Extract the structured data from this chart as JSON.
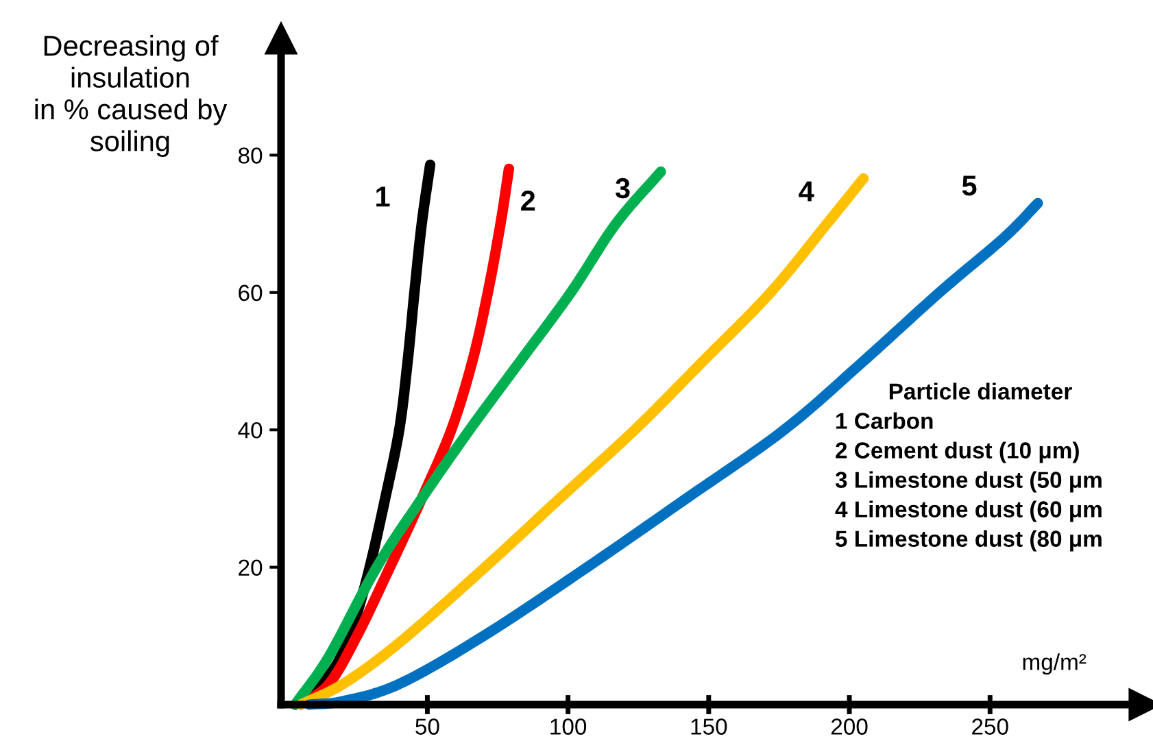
{
  "chart_data": {
    "type": "line",
    "ylabel": "Decreasing of\ninsulation\nin % caused by\nsoiling",
    "xlabel": "mg/m²",
    "xlim": [
      -2,
      305
    ],
    "ylim": [
      0,
      97
    ],
    "xticks": [
      50,
      100,
      150,
      200,
      250
    ],
    "yticks": [
      20,
      40,
      60,
      80
    ],
    "grid": false,
    "marker": "none",
    "line_style": "solid",
    "series": [
      {
        "name": "1",
        "color": "#000000",
        "x": [
          3,
          10,
          18,
          24,
          29.5,
          35,
          40,
          43,
          45.4,
          48,
          51
        ],
        "values": [
          0,
          2,
          6,
          12,
          20,
          30,
          40,
          50,
          60,
          70,
          78.6
        ]
      },
      {
        "name": "2",
        "color": "#ff0000",
        "x": [
          5,
          15,
          25,
          36.7,
          48,
          58.5,
          66,
          71.5,
          76,
          79
        ],
        "values": [
          0,
          3,
          10,
          20,
          30,
          40,
          50,
          60,
          70,
          78
        ]
      },
      {
        "name": "3",
        "color": "#00b050",
        "x": [
          3,
          15,
          32,
          48,
          65,
          83,
          101,
          117,
          133
        ],
        "values": [
          0,
          7,
          20,
          30,
          40,
          50,
          60,
          70,
          77.6
        ]
      },
      {
        "name": "4",
        "color": "#ffc000",
        "x": [
          5,
          20,
          40,
          70.5,
          97,
          123.7,
          148,
          172,
          192,
          205
        ],
        "values": [
          0,
          3,
          9,
          20,
          30,
          40,
          50,
          60,
          70,
          76.6
        ]
      },
      {
        "name": "5",
        "color": "#0070c0",
        "x": [
          8,
          20,
          40,
          70,
          106.8,
          142,
          176.8,
          205,
          232,
          255,
          267
        ],
        "values": [
          0,
          0.5,
          3,
          10,
          20,
          30,
          40,
          50,
          60,
          68,
          73
        ]
      }
    ],
    "annotations": [
      "Particle diameter",
      "1 Carbon",
      "2 Cement dust (10 μm)",
      "3 Limestone dust (50 μm",
      "4 Limestone dust (60 μm",
      "5 Limestone dust (80 μm"
    ]
  }
}
